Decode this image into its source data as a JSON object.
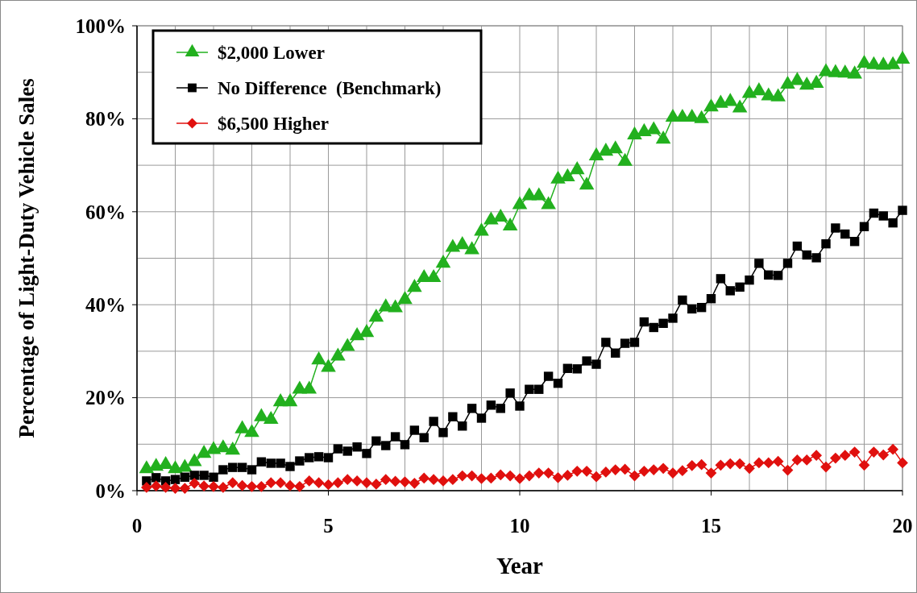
{
  "chart_data": {
    "type": "line",
    "xlabel": "Year",
    "ylabel": "Percentage of Light-Duty Vehicle Sales",
    "x": [
      0.25,
      0.5,
      0.75,
      1,
      1.25,
      1.5,
      1.75,
      2,
      2.25,
      2.5,
      2.75,
      3,
      3.25,
      3.5,
      3.75,
      4,
      4.25,
      4.5,
      4.75,
      5,
      5.25,
      5.5,
      5.75,
      6,
      6.25,
      6.5,
      6.75,
      7,
      7.25,
      7.5,
      7.75,
      8,
      8.25,
      8.5,
      8.75,
      9,
      9.25,
      9.5,
      9.75,
      10,
      10.25,
      10.5,
      10.75,
      11,
      11.25,
      11.5,
      11.75,
      12,
      12.25,
      12.5,
      12.75,
      13,
      13.25,
      13.5,
      13.75,
      14,
      14.25,
      14.5,
      14.75,
      15,
      15.25,
      15.5,
      15.75,
      16,
      16.25,
      16.5,
      16.75,
      17,
      17.25,
      17.5,
      17.75,
      18,
      18.25,
      18.5,
      18.75,
      19,
      19.25,
      19.5,
      19.75,
      20
    ],
    "series": [
      {
        "name": "$2,000 Lower",
        "color": "#22b01e",
        "marker": "triangle",
        "values": [
          4.7,
          5.2,
          5.6,
          4.7,
          5.0,
          6.2,
          8.0,
          8.8,
          9.2,
          8.7,
          13.3,
          12.5,
          15.9,
          15.3,
          19.1,
          19.1,
          21.8,
          21.8,
          28.1,
          26.5,
          28.9,
          31.0,
          33.3,
          34.0,
          37.3,
          39.5,
          39.3,
          41.1,
          43.7,
          45.8,
          45.8,
          48.9,
          52.3,
          52.9,
          51.8,
          55.8,
          58.2,
          58.8,
          56.9,
          61.5,
          63.4,
          63.4,
          61.5,
          67.0,
          67.5,
          69.0,
          65.7,
          72.0,
          73.0,
          73.5,
          70.8,
          76.5,
          77.2,
          77.6,
          75.6,
          80.3,
          80.3,
          80.3,
          80.0,
          82.5,
          83.3,
          83.7,
          82.3,
          85.4,
          86.0,
          84.9,
          84.7,
          87.4,
          88.2,
          87.2,
          87.6,
          90.1,
          89.9,
          89.8,
          89.6,
          91.9,
          91.6,
          91.5,
          91.6,
          92.8
        ]
      },
      {
        "name": "No Difference  (Benchmark)",
        "color": "#000000",
        "marker": "square",
        "values": [
          2.1,
          2.8,
          2.1,
          2.4,
          2.9,
          3.3,
          3.3,
          2.9,
          4.5,
          5.0,
          5.0,
          4.5,
          6.2,
          5.9,
          5.9,
          5.2,
          6.4,
          7.1,
          7.3,
          7.1,
          9.0,
          8.5,
          9.4,
          8.0,
          10.7,
          9.7,
          11.6,
          9.9,
          13.0,
          11.4,
          14.9,
          12.5,
          15.9,
          13.9,
          17.7,
          15.6,
          18.4,
          17.7,
          21.0,
          18.2,
          21.8,
          21.8,
          24.6,
          23.1,
          26.3,
          26.2,
          27.9,
          27.2,
          31.9,
          29.6,
          31.7,
          31.9,
          36.3,
          35.1,
          36.0,
          37.1,
          41.0,
          39.1,
          39.4,
          41.3,
          45.6,
          43.0,
          43.8,
          45.3,
          48.9,
          46.4,
          46.3,
          48.9,
          52.6,
          50.7,
          50.1,
          53.1,
          56.5,
          55.2,
          53.6,
          56.8,
          59.7,
          59.1,
          57.6,
          60.3
        ]
      },
      {
        "name": "$6,500 Higher",
        "color": "#e0100e",
        "marker": "diamond",
        "values": [
          0.7,
          1.0,
          0.7,
          0.5,
          0.5,
          1.6,
          1.0,
          0.9,
          0.7,
          1.7,
          1.1,
          0.9,
          0.9,
          1.7,
          1.7,
          1.1,
          0.9,
          2.1,
          1.7,
          1.3,
          1.7,
          2.4,
          2.1,
          1.7,
          1.4,
          2.4,
          2.0,
          1.9,
          1.6,
          2.7,
          2.4,
          2.1,
          2.4,
          3.2,
          3.2,
          2.6,
          2.7,
          3.4,
          3.2,
          2.6,
          3.2,
          3.8,
          3.8,
          2.8,
          3.3,
          4.2,
          4.2,
          3.0,
          4.0,
          4.5,
          4.6,
          3.2,
          4.2,
          4.5,
          4.8,
          3.8,
          4.3,
          5.4,
          5.6,
          3.8,
          5.5,
          5.8,
          5.8,
          4.8,
          6.0,
          6.0,
          6.3,
          4.4,
          6.6,
          6.6,
          7.6,
          5.1,
          7.0,
          7.6,
          8.3,
          5.5,
          8.3,
          7.7,
          8.9,
          6.0
        ]
      }
    ],
    "xlim": [
      0,
      20
    ],
    "xticks": [
      0,
      {
        "value": 1,
        "label": null
      },
      {
        "value": 2,
        "label": null
      },
      {
        "value": 3,
        "label": null
      },
      {
        "value": 4,
        "label": null
      },
      5,
      {
        "value": 6,
        "label": null
      },
      {
        "value": 7,
        "label": null
      },
      {
        "value": 8,
        "label": null
      },
      {
        "value": 9,
        "label": null
      },
      10,
      {
        "value": 11,
        "label": null
      },
      {
        "value": 12,
        "label": null
      },
      {
        "value": 13,
        "label": null
      },
      {
        "value": 14,
        "label": null
      },
      15,
      {
        "value": 16,
        "label": null
      },
      {
        "value": 17,
        "label": null
      },
      {
        "value": 18,
        "label": null
      },
      {
        "value": 19,
        "label": null
      },
      20
    ],
    "ylim": [
      0,
      100
    ],
    "yticks": [
      {
        "value": 0,
        "label": "0%"
      },
      {
        "value": 10,
        "label": null
      },
      {
        "value": 20,
        "label": "20%"
      },
      {
        "value": 30,
        "label": null
      },
      {
        "value": 40,
        "label": "40%"
      },
      {
        "value": 50,
        "label": null
      },
      {
        "value": 60,
        "label": "60%"
      },
      {
        "value": 70,
        "label": null
      },
      {
        "value": 80,
        "label": "80%"
      },
      {
        "value": 90,
        "label": null
      },
      {
        "value": 100,
        "label": "100%"
      }
    ],
    "grid": true,
    "legend": "top left",
    "line_style": "solid"
  }
}
